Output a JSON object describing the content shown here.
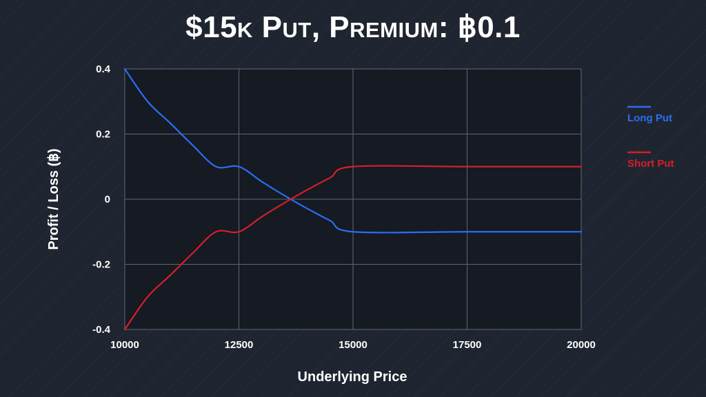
{
  "title": "$15k Put, Premium: ฿0.1",
  "chart_data": {
    "type": "line",
    "title": "$15k Put, Premium: ฿0.1",
    "xlabel": "Underlying Price",
    "ylabel": "Profit / Loss (฿)",
    "xlim": [
      10000,
      20000
    ],
    "ylim": [
      -0.4,
      0.4
    ],
    "xticks": [
      10000,
      12500,
      15000,
      17500,
      20000
    ],
    "yticks": [
      0.4,
      0.2,
      0,
      -0.2,
      -0.4
    ],
    "ytick_labels": [
      "0.4",
      "0.2",
      "0",
      "-0.2",
      "-0.4"
    ],
    "grid": true,
    "legend_position": "right",
    "series": [
      {
        "name": "Long Put",
        "color": "#2b6ef5",
        "x": [
          10000,
          10500,
          11000,
          11500,
          12000,
          12500,
          13000,
          13500,
          14000,
          14500,
          15000,
          17500,
          20000
        ],
        "y": [
          0.4,
          0.3,
          0.233,
          0.164,
          0.1,
          0.1,
          0.054,
          0.011,
          -0.029,
          -0.066,
          -0.1,
          -0.1,
          -0.1
        ]
      },
      {
        "name": "Short Put",
        "color": "#d61f2a",
        "x": [
          10000,
          10500,
          11000,
          11500,
          12000,
          12500,
          13000,
          13500,
          14000,
          14500,
          15000,
          17500,
          20000
        ],
        "y": [
          -0.4,
          -0.3,
          -0.233,
          -0.164,
          -0.1,
          -0.1,
          -0.054,
          -0.011,
          0.029,
          0.066,
          0.1,
          0.1,
          0.1
        ]
      }
    ]
  }
}
